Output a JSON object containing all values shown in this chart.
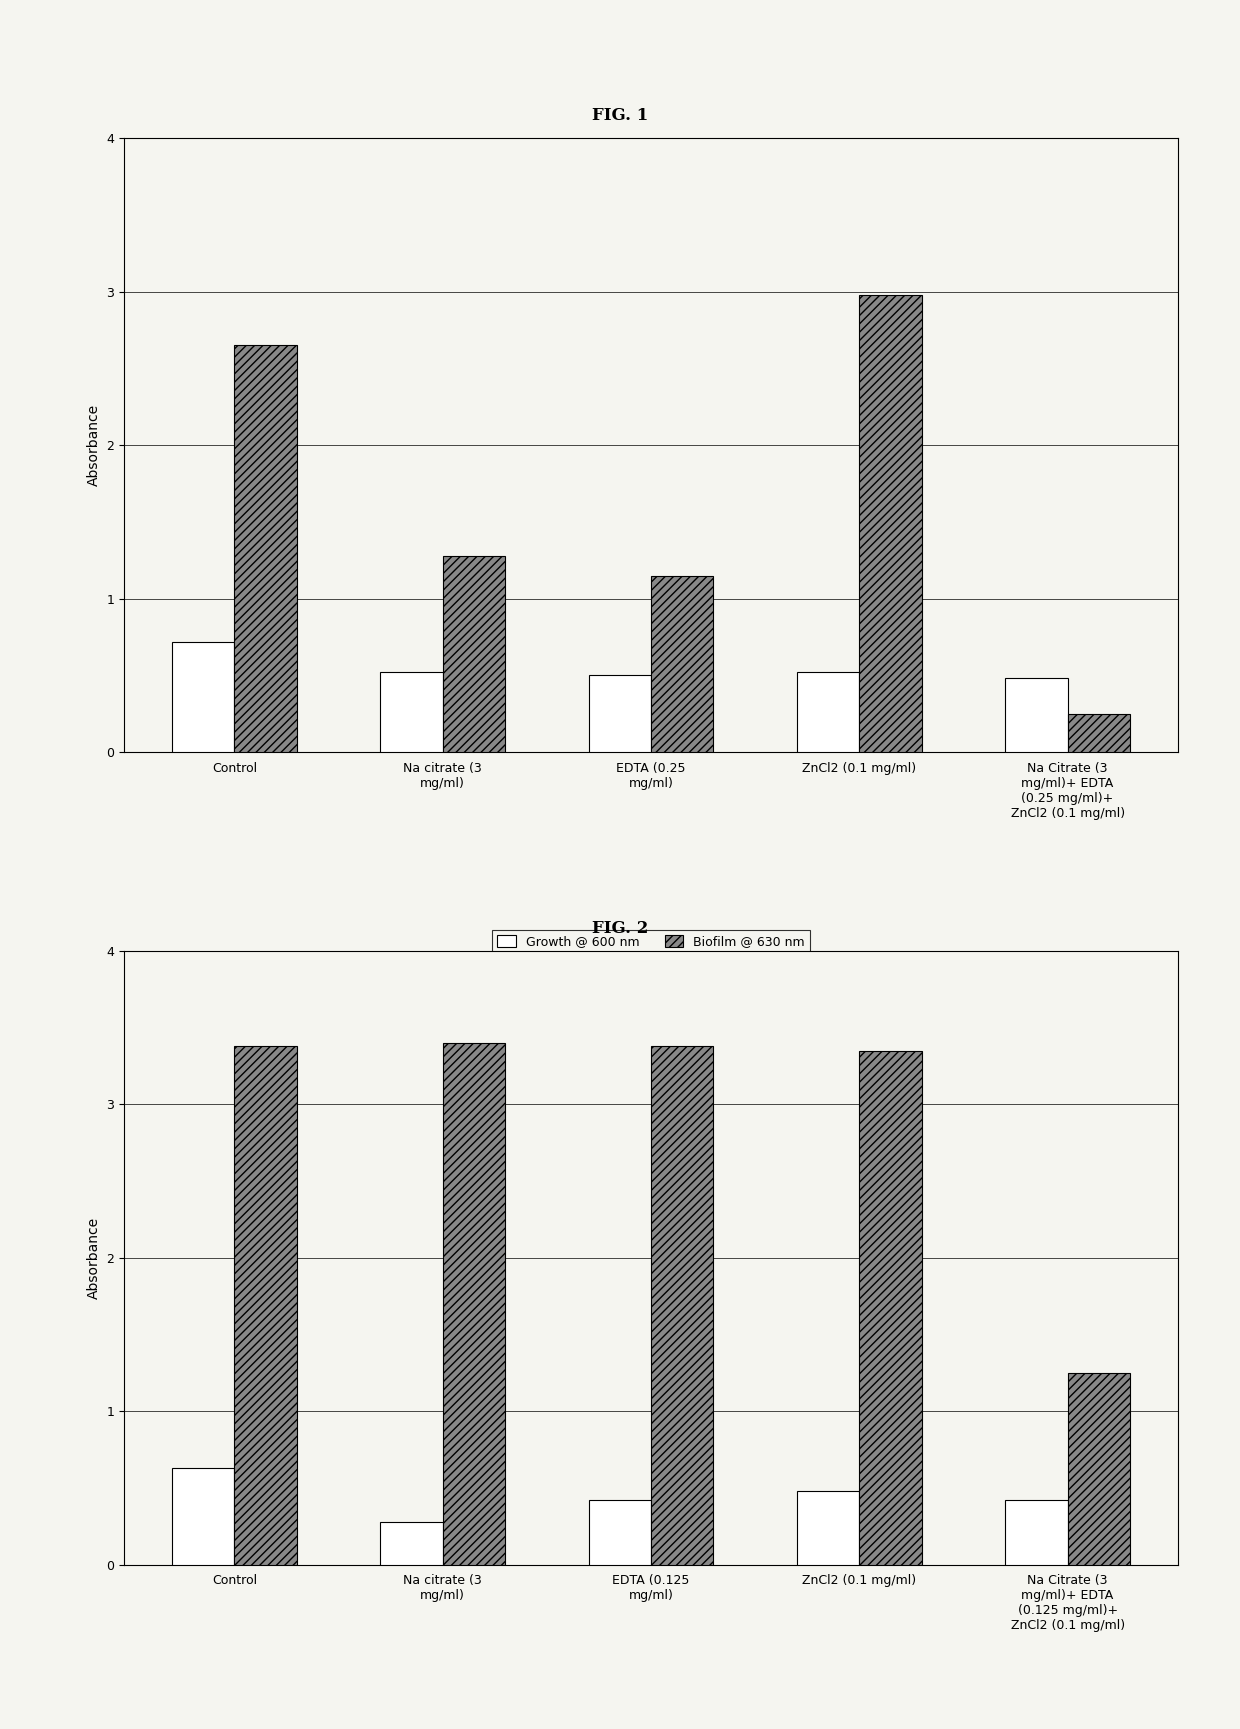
{
  "fig1": {
    "title": "FIG. 1",
    "categories": [
      "Control",
      "Na citrate (3\nmg/ml)",
      "EDTA (0.25\nmg/ml)",
      "ZnCl2 (0.1 mg/ml)",
      "Na Citrate (3\nmg/ml)+ EDTA\n(0.25 mg/ml)+\nZnCl2 (0.1 mg/ml)"
    ],
    "growth": [
      0.72,
      0.52,
      0.5,
      0.52,
      0.48
    ],
    "biofilm": [
      2.65,
      1.28,
      1.15,
      2.98,
      0.25
    ],
    "ylabel": "Absorbance",
    "ylim": [
      0,
      4
    ],
    "yticks": [
      0,
      1,
      2,
      3,
      4
    ]
  },
  "fig2": {
    "title": "FIG. 2",
    "categories": [
      "Control",
      "Na citrate (3\nmg/ml)",
      "EDTA (0.125\nmg/ml)",
      "ZnCl2 (0.1 mg/ml)",
      "Na Citrate (3\nmg/ml)+ EDTA\n(0.125 mg/ml)+\nZnCl2 (0.1 mg/ml)"
    ],
    "growth": [
      0.63,
      0.28,
      0.42,
      0.48,
      0.42
    ],
    "biofilm": [
      3.38,
      3.4,
      3.38,
      3.35,
      1.25
    ],
    "ylabel": "Absorbance",
    "ylim": [
      0,
      4
    ],
    "yticks": [
      0,
      1,
      2,
      3,
      4
    ]
  },
  "bar_width": 0.3,
  "growth_color": "#ffffff",
  "growth_edge": "#000000",
  "biofilm_color": "#888888",
  "biofilm_edge": "#000000",
  "legend_labels": [
    "Growth @ 600 nm",
    "Biofilm @ 630 nm"
  ],
  "background_color": "#f5f5f0",
  "plot_bg": "#f5f5f0",
  "title_fontsize": 12,
  "axis_fontsize": 10,
  "tick_fontsize": 9,
  "legend_fontsize": 9
}
